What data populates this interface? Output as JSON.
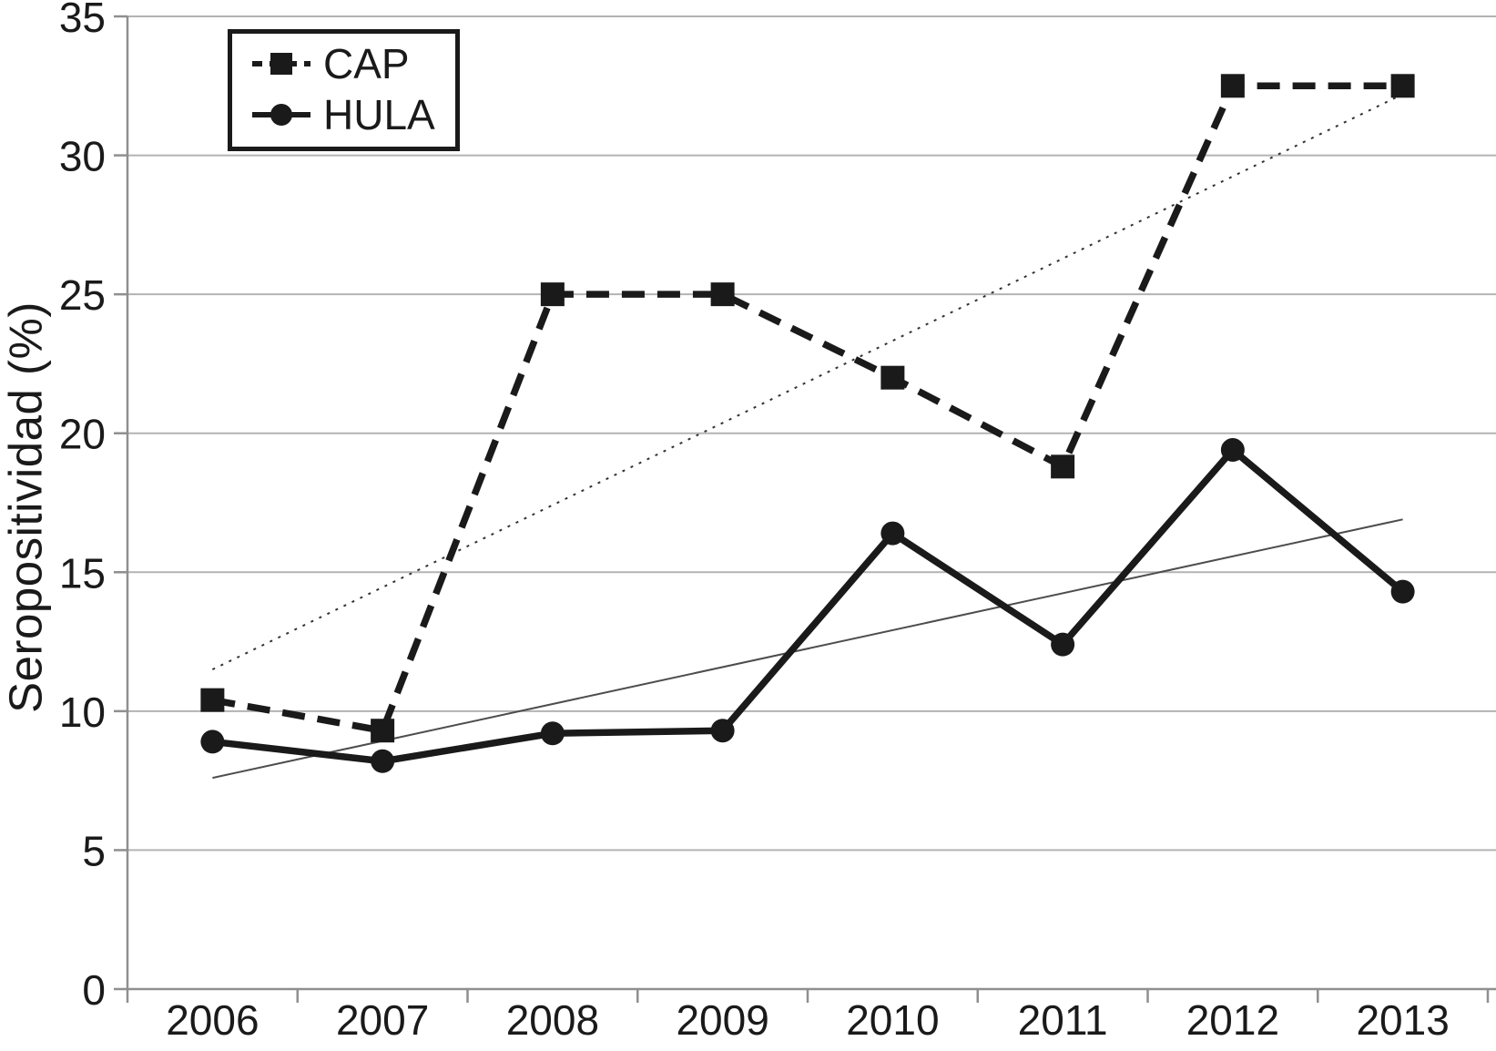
{
  "chart_data": {
    "type": "line",
    "title": "",
    "xlabel": "",
    "ylabel": "Seropositividad (%)",
    "categories": [
      "2006",
      "2007",
      "2008",
      "2009",
      "2010",
      "2011",
      "2012",
      "2013"
    ],
    "series": [
      {
        "name": "CAP",
        "line_style": "dashed",
        "marker": "square",
        "values": [
          10.4,
          9.3,
          25.0,
          25.0,
          22.0,
          18.8,
          32.5,
          32.5
        ]
      },
      {
        "name": "HULA",
        "line_style": "solid",
        "marker": "circle",
        "values": [
          8.9,
          8.2,
          9.2,
          9.3,
          16.4,
          12.4,
          19.4,
          14.3
        ]
      }
    ],
    "trendlines": [
      {
        "series": "CAP",
        "style": "dotted",
        "start_value": 11.5,
        "end_value": 32.2
      },
      {
        "series": "HULA",
        "style": "thin-solid",
        "start_value": 7.6,
        "end_value": 16.9
      }
    ],
    "ylim": [
      0,
      35
    ],
    "yticks": [
      0,
      5,
      10,
      15,
      20,
      25,
      30,
      35
    ],
    "grid": "horizontal",
    "legend_position": "top-left-inside",
    "colors": {
      "series": "#1a1a1a",
      "text": "#1a1a1a",
      "gridline": "#b3b3b3",
      "axis": "#8f8f8f",
      "trend_cap": "#333333",
      "trend_hula": "#4d4d4d",
      "background": "#ffffff"
    }
  }
}
